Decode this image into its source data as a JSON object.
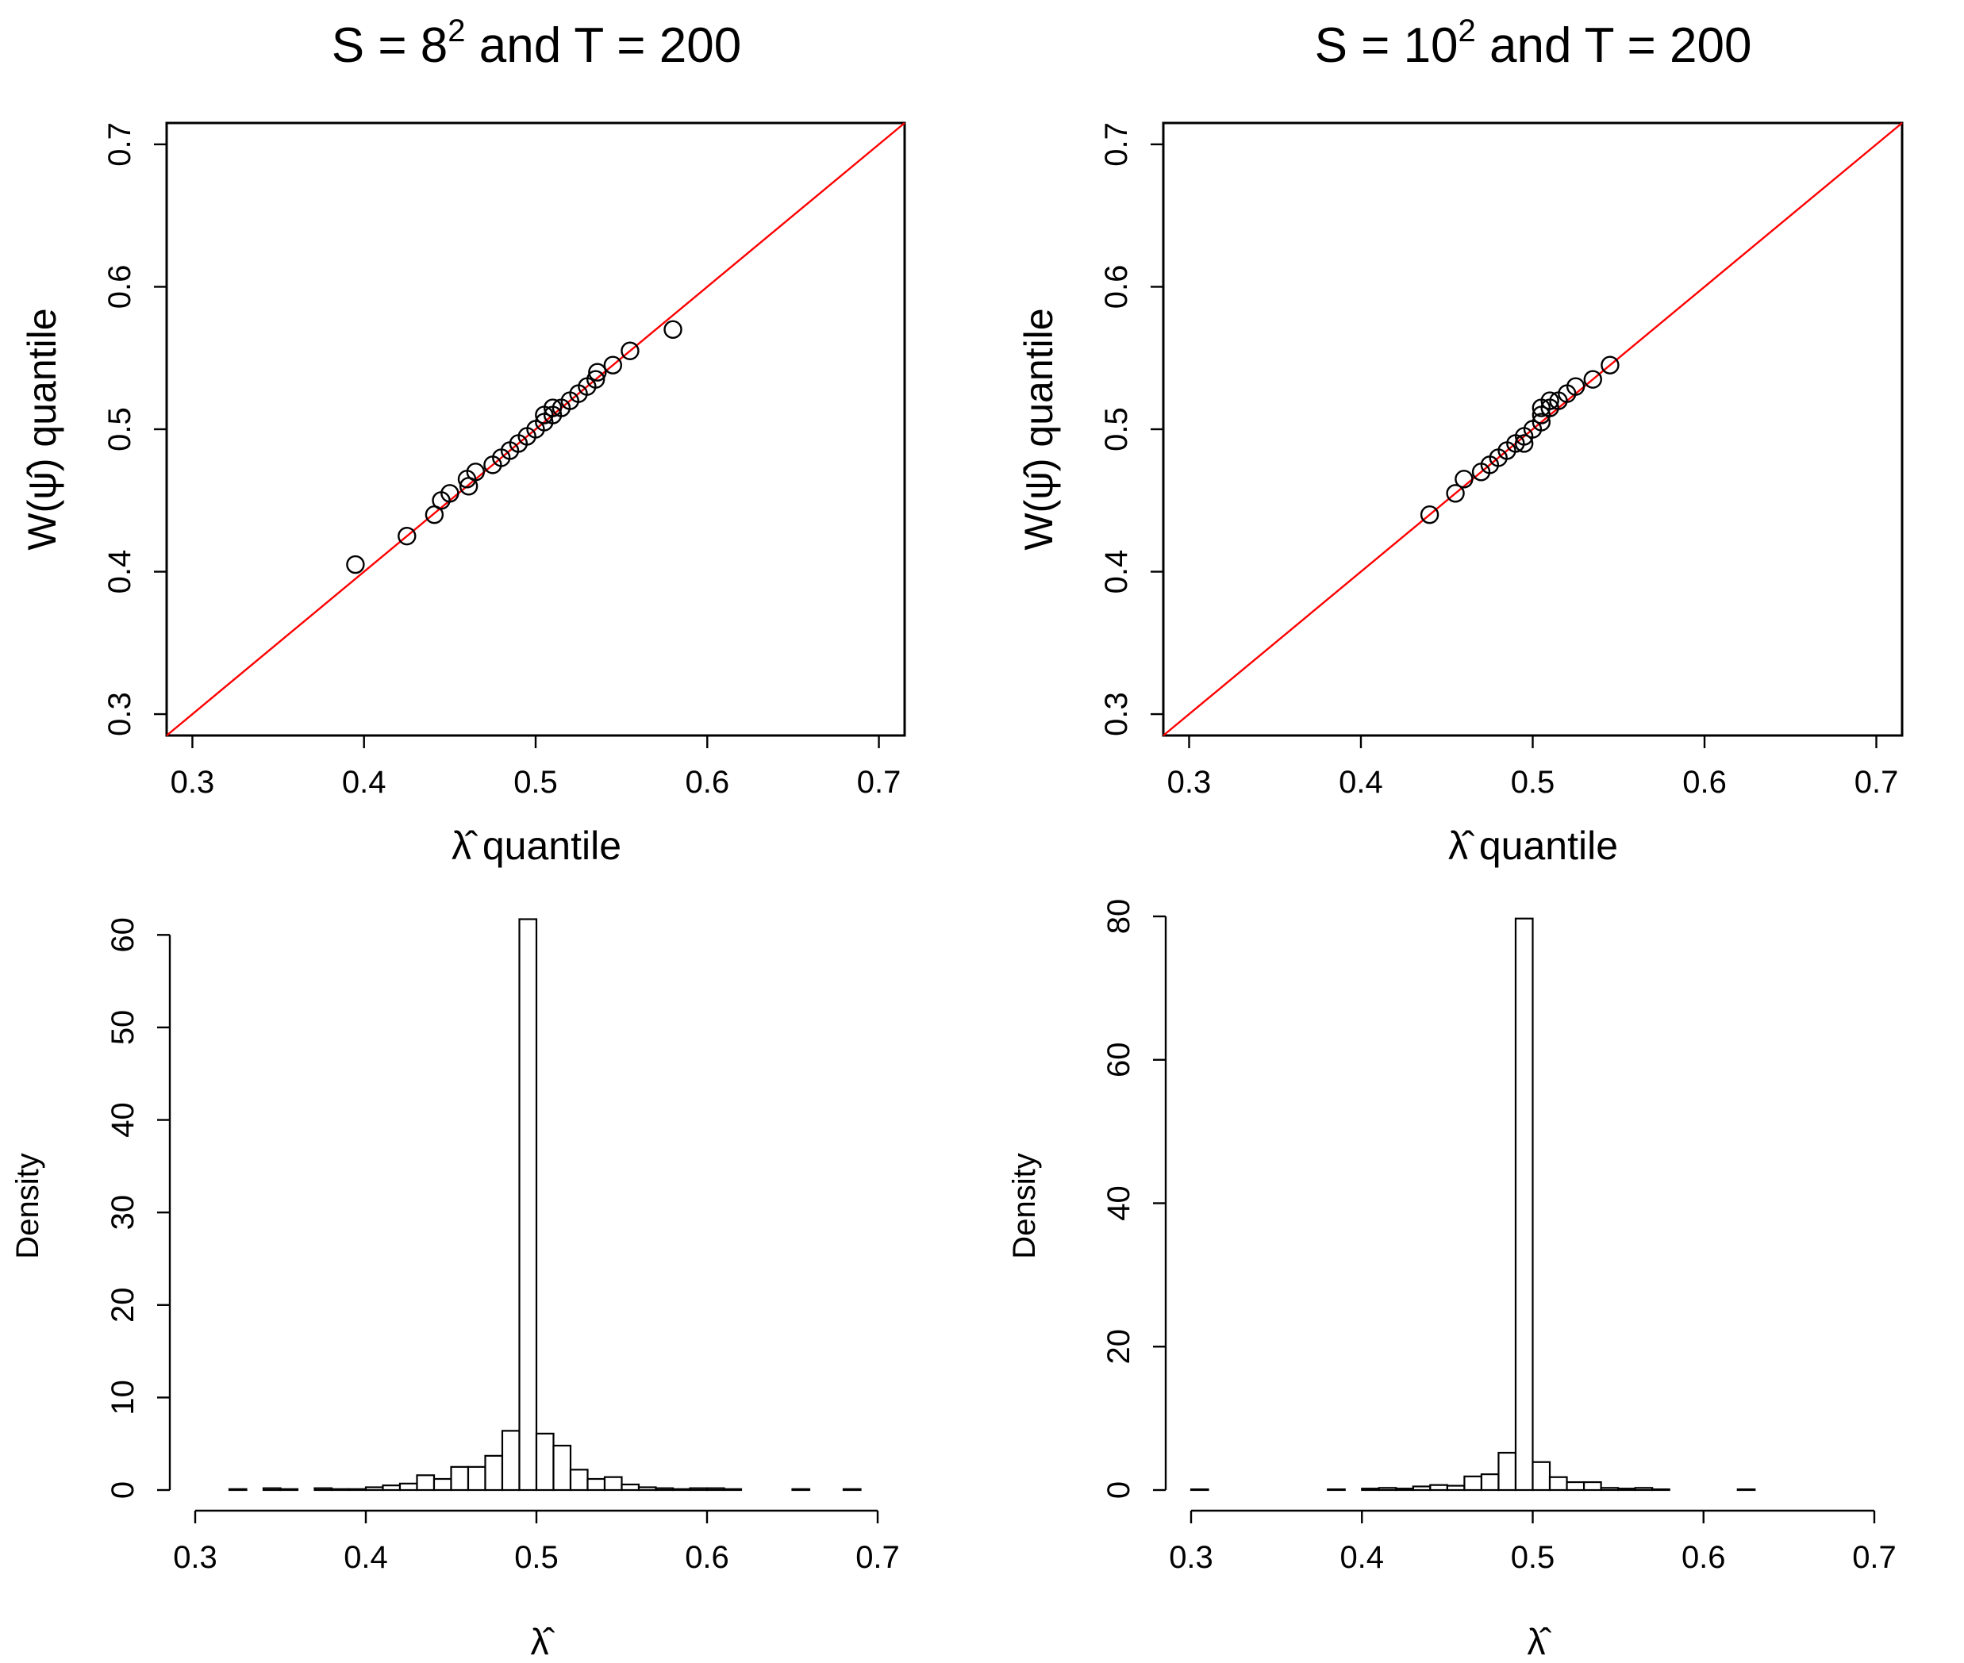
{
  "chart_data": [
    {
      "type": "scatter",
      "panel": "top-left",
      "title": {
        "base": "S = 8",
        "sup": "2",
        "rest": " and T = 200"
      },
      "xlabel": "λ̂ quantile",
      "ylabel": "W(ψ̂) quantile",
      "xlim": [
        0.285,
        0.715
      ],
      "ylim": [
        0.285,
        0.715
      ],
      "xticks": [
        0.3,
        0.4,
        0.5,
        0.6,
        0.7
      ],
      "xtick_labels": [
        "0.3",
        "0.4",
        "0.5",
        "0.6",
        "0.7"
      ],
      "yticks": [
        0.3,
        0.4,
        0.5,
        0.6,
        0.7
      ],
      "ytick_labels": [
        "0.3",
        "0.4",
        "0.5",
        "0.6",
        "0.7"
      ],
      "reference_line": {
        "slope": 1,
        "intercept": 0,
        "color": "#ff0000"
      },
      "points": [
        [
          0.395,
          0.405
        ],
        [
          0.425,
          0.425
        ],
        [
          0.441,
          0.44
        ],
        [
          0.445,
          0.45
        ],
        [
          0.45,
          0.455
        ],
        [
          0.46,
          0.465
        ],
        [
          0.461,
          0.46
        ],
        [
          0.465,
          0.47
        ],
        [
          0.475,
          0.475
        ],
        [
          0.48,
          0.48
        ],
        [
          0.485,
          0.485
        ],
        [
          0.49,
          0.49
        ],
        [
          0.495,
          0.495
        ],
        [
          0.5,
          0.5
        ],
        [
          0.505,
          0.505
        ],
        [
          0.505,
          0.51
        ],
        [
          0.51,
          0.51
        ],
        [
          0.51,
          0.515
        ],
        [
          0.515,
          0.515
        ],
        [
          0.52,
          0.52
        ],
        [
          0.525,
          0.525
        ],
        [
          0.53,
          0.53
        ],
        [
          0.535,
          0.535
        ],
        [
          0.536,
          0.54
        ],
        [
          0.545,
          0.545
        ],
        [
          0.555,
          0.555
        ],
        [
          0.58,
          0.57
        ]
      ],
      "grid": false
    },
    {
      "type": "scatter",
      "panel": "top-right",
      "title": {
        "base": "S = 10",
        "sup": "2",
        "rest": " and T = 200"
      },
      "xlabel": "λ̂ quantile",
      "ylabel": "W(ψ̂) quantile",
      "xlim": [
        0.285,
        0.715
      ],
      "ylim": [
        0.285,
        0.715
      ],
      "xticks": [
        0.3,
        0.4,
        0.5,
        0.6,
        0.7
      ],
      "xtick_labels": [
        "0.3",
        "0.4",
        "0.5",
        "0.6",
        "0.7"
      ],
      "yticks": [
        0.3,
        0.4,
        0.5,
        0.6,
        0.7
      ],
      "ytick_labels": [
        "0.3",
        "0.4",
        "0.5",
        "0.6",
        "0.7"
      ],
      "reference_line": {
        "slope": 1,
        "intercept": 0,
        "color": "#ff0000"
      },
      "points": [
        [
          0.44,
          0.44
        ],
        [
          0.455,
          0.455
        ],
        [
          0.46,
          0.465
        ],
        [
          0.47,
          0.47
        ],
        [
          0.475,
          0.475
        ],
        [
          0.48,
          0.48
        ],
        [
          0.485,
          0.485
        ],
        [
          0.49,
          0.49
        ],
        [
          0.495,
          0.49
        ],
        [
          0.495,
          0.495
        ],
        [
          0.5,
          0.5
        ],
        [
          0.505,
          0.505
        ],
        [
          0.505,
          0.51
        ],
        [
          0.505,
          0.515
        ],
        [
          0.51,
          0.515
        ],
        [
          0.51,
          0.52
        ],
        [
          0.515,
          0.52
        ],
        [
          0.52,
          0.525
        ],
        [
          0.525,
          0.53
        ],
        [
          0.535,
          0.535
        ],
        [
          0.545,
          0.545
        ]
      ],
      "grid": false
    },
    {
      "type": "bar",
      "panel": "bottom-left",
      "title": "",
      "xlabel": "λ̂",
      "ylabel": "Density",
      "xlim": [
        0.3,
        0.7
      ],
      "ylim": [
        0,
        62
      ],
      "xticks": [
        0.3,
        0.4,
        0.5,
        0.6,
        0.7
      ],
      "xtick_labels": [
        "0.3",
        "0.4",
        "0.5",
        "0.6",
        "0.7"
      ],
      "yticks": [
        0,
        10,
        20,
        30,
        40,
        50,
        60
      ],
      "ytick_labels": [
        "0",
        "10",
        "20",
        "30",
        "40",
        "50",
        "60"
      ],
      "bin_width": 0.01,
      "bin_starts": [
        0.32,
        0.34,
        0.35,
        0.37,
        0.38,
        0.39,
        0.4,
        0.41,
        0.42,
        0.43,
        0.44,
        0.45,
        0.46,
        0.47,
        0.48,
        0.49,
        0.5,
        0.51,
        0.52,
        0.53,
        0.54,
        0.55,
        0.56,
        0.57,
        0.58,
        0.59,
        0.6,
        0.61,
        0.65,
        0.68
      ],
      "values": [
        0.1,
        0.2,
        0.1,
        0.2,
        0.1,
        0.1,
        0.3,
        0.5,
        0.7,
        1.6,
        1.2,
        2.5,
        2.5,
        3.7,
        6.4,
        61.7,
        6.1,
        4.8,
        2.2,
        1.2,
        1.4,
        0.6,
        0.3,
        0.2,
        0.1,
        0.2,
        0.2,
        0.1,
        0.1,
        0.1
      ],
      "grid": false
    },
    {
      "type": "bar",
      "panel": "bottom-right",
      "title": "",
      "xlabel": "λ̂",
      "ylabel": "Density",
      "xlim": [
        0.3,
        0.7
      ],
      "ylim": [
        0,
        80
      ],
      "xticks": [
        0.3,
        0.4,
        0.5,
        0.6,
        0.7
      ],
      "xtick_labels": [
        "0.3",
        "0.4",
        "0.5",
        "0.6",
        "0.7"
      ],
      "yticks": [
        0,
        20,
        40,
        60,
        80
      ],
      "ytick_labels": [
        "0",
        "20",
        "40",
        "60",
        "80"
      ],
      "bin_width": 0.01,
      "bin_starts": [
        0.3,
        0.38,
        0.4,
        0.41,
        0.42,
        0.43,
        0.44,
        0.45,
        0.46,
        0.47,
        0.48,
        0.49,
        0.5,
        0.51,
        0.52,
        0.53,
        0.54,
        0.55,
        0.56,
        0.57,
        0.62
      ],
      "values": [
        0.1,
        0.1,
        0.2,
        0.3,
        0.2,
        0.5,
        0.7,
        0.6,
        1.9,
        2.2,
        5.2,
        79.7,
        3.9,
        1.8,
        1.1,
        1.1,
        0.3,
        0.2,
        0.3,
        0.1,
        0.1
      ],
      "grid": false
    }
  ]
}
